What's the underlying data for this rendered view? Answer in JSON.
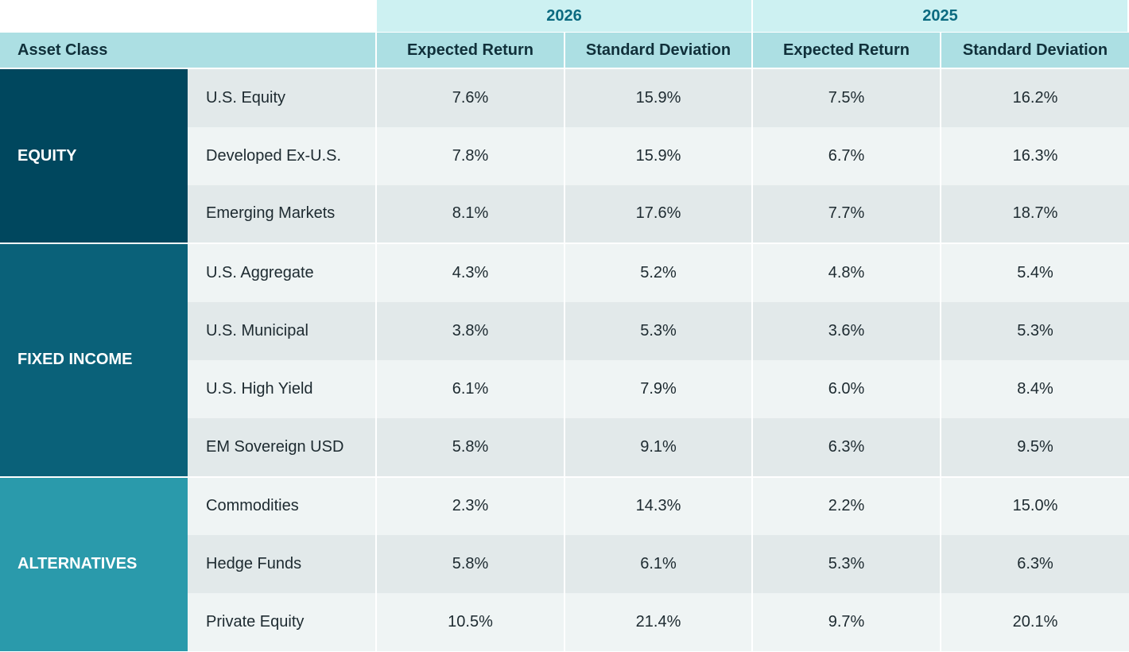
{
  "header": {
    "asset_class": "Asset Class",
    "years": [
      {
        "label": "2026",
        "columns": [
          "Expected Return",
          "Standard Deviation"
        ]
      },
      {
        "label": "2025",
        "columns": [
          "Expected Return",
          "Standard Deviation"
        ]
      }
    ]
  },
  "groups": [
    {
      "name": "EQUITY",
      "rows": [
        {
          "name": "U.S. Equity",
          "values": [
            "7.6%",
            "15.9%",
            "7.5%",
            "16.2%"
          ]
        },
        {
          "name": "Developed Ex-U.S.",
          "values": [
            "7.8%",
            "15.9%",
            "6.7%",
            "16.3%"
          ]
        },
        {
          "name": "Emerging Markets",
          "values": [
            "8.1%",
            "17.6%",
            "7.7%",
            "18.7%"
          ]
        }
      ]
    },
    {
      "name": "FIXED INCOME",
      "rows": [
        {
          "name": "U.S. Aggregate",
          "values": [
            "4.3%",
            "5.2%",
            "4.8%",
            "5.4%"
          ]
        },
        {
          "name": "U.S. Municipal",
          "values": [
            "3.8%",
            "5.3%",
            "3.6%",
            "5.3%"
          ]
        },
        {
          "name": "U.S. High Yield",
          "values": [
            "6.1%",
            "7.9%",
            "6.0%",
            "8.4%"
          ]
        },
        {
          "name": "EM Sovereign USD",
          "values": [
            "5.8%",
            "9.1%",
            "6.3%",
            "9.5%"
          ]
        }
      ]
    },
    {
      "name": "ALTERNATIVES",
      "rows": [
        {
          "name": "Commodities",
          "values": [
            "2.3%",
            "14.3%",
            "2.2%",
            "15.0%"
          ]
        },
        {
          "name": "Hedge Funds",
          "values": [
            "5.8%",
            "6.1%",
            "5.3%",
            "6.3%"
          ]
        },
        {
          "name": "Private Equity",
          "values": [
            "10.5%",
            "21.4%",
            "9.7%",
            "20.1%"
          ]
        }
      ]
    }
  ]
}
